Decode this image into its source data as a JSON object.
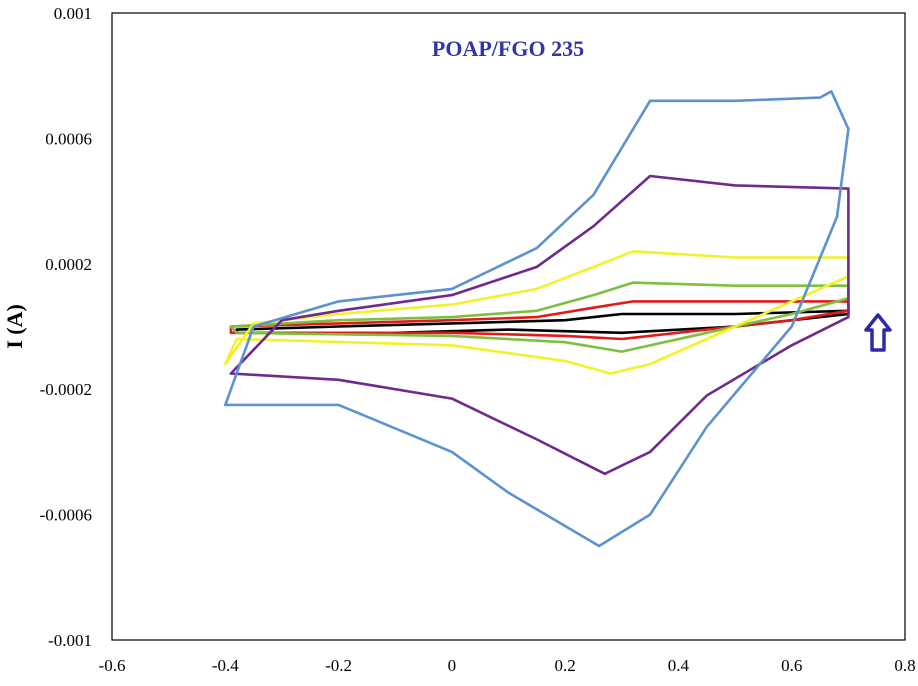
{
  "chart_data": {
    "type": "line",
    "title": "POAP/FGO 235",
    "xlabel": "",
    "ylabel": "I (A)",
    "xlim": [
      -0.6,
      0.8
    ],
    "ylim": [
      -0.001,
      0.001
    ],
    "x_ticks": [
      "-0.6",
      "-0.4",
      "-0.2",
      "0",
      "0.2",
      "0.4",
      "0.6",
      "0.8"
    ],
    "y_ticks": [
      "0.001",
      "0.0006",
      "0.0002",
      "-0.0002",
      "-0.0006",
      "-0.001"
    ],
    "grid": false,
    "annotation": "arrow-up (increasing scan rate)",
    "colors": {
      "title": "#3333aa",
      "arrow": "#2b2ba8"
    },
    "series": [
      {
        "color": "#000000",
        "points": [
          [
            -0.38,
            -1e-05
          ],
          [
            -0.2,
            0.0
          ],
          [
            0.0,
            1e-05
          ],
          [
            0.2,
            2e-05
          ],
          [
            0.3,
            4e-05
          ],
          [
            0.5,
            4e-05
          ],
          [
            0.7,
            5e-05
          ],
          [
            0.7,
            4e-05
          ],
          [
            0.5,
            0.0
          ],
          [
            0.3,
            -2e-05
          ],
          [
            0.1,
            -1e-05
          ],
          [
            -0.1,
            -2e-05
          ],
          [
            -0.38,
            -2e-05
          ],
          [
            -0.38,
            -1e-05
          ]
        ]
      },
      {
        "color": "#e01b1b",
        "points": [
          [
            -0.39,
            0.0
          ],
          [
            -0.2,
            1e-05
          ],
          [
            0.0,
            2e-05
          ],
          [
            0.15,
            3e-05
          ],
          [
            0.25,
            6e-05
          ],
          [
            0.32,
            8e-05
          ],
          [
            0.5,
            8e-05
          ],
          [
            0.7,
            8e-05
          ],
          [
            0.7,
            5e-05
          ],
          [
            0.6,
            2e-05
          ],
          [
            0.45,
            -1e-05
          ],
          [
            0.3,
            -4e-05
          ],
          [
            0.2,
            -3e-05
          ],
          [
            0.0,
            -2e-05
          ],
          [
            -0.39,
            -2e-05
          ],
          [
            -0.39,
            0.0
          ]
        ]
      },
      {
        "color": "#7fbf3f",
        "points": [
          [
            -0.39,
            0.0
          ],
          [
            -0.2,
            2e-05
          ],
          [
            0.0,
            3e-05
          ],
          [
            0.15,
            5e-05
          ],
          [
            0.25,
            0.0001
          ],
          [
            0.32,
            0.00014
          ],
          [
            0.5,
            0.00013
          ],
          [
            0.7,
            0.00013
          ],
          [
            0.7,
            9e-05
          ],
          [
            0.6,
            4e-05
          ],
          [
            0.45,
            -2e-05
          ],
          [
            0.3,
            -8e-05
          ],
          [
            0.2,
            -5e-05
          ],
          [
            0.0,
            -3e-05
          ],
          [
            -0.38,
            -2e-05
          ],
          [
            -0.39,
            0.0
          ]
        ]
      },
      {
        "color": "#f2f22a",
        "points": [
          [
            -0.4,
            -0.00012
          ],
          [
            -0.35,
            1e-05
          ],
          [
            -0.2,
            4e-05
          ],
          [
            0.0,
            7e-05
          ],
          [
            0.15,
            0.00012
          ],
          [
            0.25,
            0.00019
          ],
          [
            0.32,
            0.00024
          ],
          [
            0.5,
            0.00022
          ],
          [
            0.7,
            0.00022
          ],
          [
            0.7,
            0.00016
          ],
          [
            0.6,
            8e-05
          ],
          [
            0.45,
            -4e-05
          ],
          [
            0.35,
            -0.00012
          ],
          [
            0.28,
            -0.00015
          ],
          [
            0.2,
            -0.00011
          ],
          [
            0.0,
            -6e-05
          ],
          [
            -0.38,
            -4e-05
          ],
          [
            -0.4,
            -0.00012
          ]
        ]
      },
      {
        "color": "#6f2a8f",
        "points": [
          [
            -0.39,
            -0.00015
          ],
          [
            -0.3,
            2e-05
          ],
          [
            -0.2,
            5e-05
          ],
          [
            0.0,
            0.0001
          ],
          [
            0.15,
            0.00019
          ],
          [
            0.25,
            0.00032
          ],
          [
            0.35,
            0.00048
          ],
          [
            0.5,
            0.00045
          ],
          [
            0.7,
            0.00044
          ],
          [
            0.7,
            3e-05
          ],
          [
            0.6,
            -6e-05
          ],
          [
            0.45,
            -0.00022
          ],
          [
            0.35,
            -0.0004
          ],
          [
            0.27,
            -0.00047
          ],
          [
            0.15,
            -0.00036
          ],
          [
            0.0,
            -0.00023
          ],
          [
            -0.2,
            -0.00017
          ],
          [
            -0.39,
            -0.00015
          ],
          [
            -0.39,
            -0.00015
          ]
        ]
      },
      {
        "color": "#5b92cf",
        "points": [
          [
            -0.4,
            -0.00025
          ],
          [
            -0.35,
            0.0
          ],
          [
            -0.2,
            8e-05
          ],
          [
            0.0,
            0.00012
          ],
          [
            0.15,
            0.00025
          ],
          [
            0.25,
            0.00042
          ],
          [
            0.35,
            0.00072
          ],
          [
            0.5,
            0.00072
          ],
          [
            0.65,
            0.00073
          ],
          [
            0.67,
            0.00075
          ],
          [
            0.7,
            0.00063
          ],
          [
            0.68,
            0.00035
          ],
          [
            0.6,
            0.0
          ],
          [
            0.45,
            -0.00032
          ],
          [
            0.35,
            -0.0006
          ],
          [
            0.26,
            -0.0007
          ],
          [
            0.1,
            -0.00053
          ],
          [
            0.0,
            -0.0004
          ],
          [
            -0.2,
            -0.00025
          ],
          [
            -0.38,
            -0.00025
          ],
          [
            -0.4,
            -0.00025
          ]
        ]
      }
    ]
  }
}
